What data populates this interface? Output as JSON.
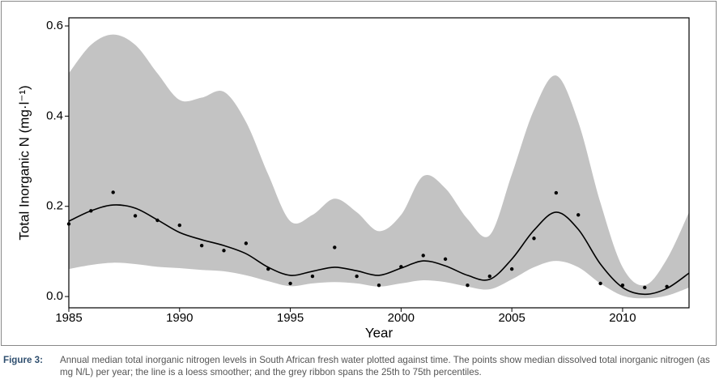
{
  "chart_data": {
    "type": "ribbon-scatter",
    "x_label": "Year",
    "y_label": "Total Inorganic N (mg·l⁻¹)",
    "xlim": [
      1985,
      2013
    ],
    "ylim": [
      -0.025,
      0.618
    ],
    "xticks": [
      1985,
      1990,
      1995,
      2000,
      2005,
      2010
    ],
    "yticks": [
      {
        "value": 0,
        "label": "0.0"
      },
      0.2,
      0.4,
      0.6
    ],
    "x": [
      1985,
      1986,
      1987,
      1988,
      1989,
      1990,
      1991,
      1992,
      1993,
      1994,
      1995,
      1996,
      1997,
      1998,
      1999,
      2000,
      2001,
      2002,
      2003,
      2004,
      2005,
      2006,
      2007,
      2008,
      2009,
      2010,
      2011,
      2012,
      2013
    ],
    "ribbon": {
      "color": "#c3c3c3",
      "upper": [
        0.495,
        0.558,
        0.581,
        0.558,
        0.495,
        0.436,
        0.441,
        0.454,
        0.387,
        0.271,
        0.167,
        0.181,
        0.217,
        0.187,
        0.145,
        0.181,
        0.267,
        0.24,
        0.172,
        0.136,
        0.271,
        0.414,
        0.49,
        0.387,
        0.208,
        0.065,
        0.025,
        0.083,
        0.187
      ],
      "lower": [
        0.061,
        0.07,
        0.075,
        0.072,
        0.066,
        0.063,
        0.059,
        0.056,
        0.047,
        0.034,
        0.023,
        0.029,
        0.032,
        0.029,
        0.022,
        0.029,
        0.036,
        0.032,
        0.022,
        0.016,
        0.038,
        0.065,
        0.079,
        0.065,
        0.029,
        0.002,
        -0.004,
        0.002,
        0.02
      ]
    },
    "smoother": {
      "color": "#000000",
      "values": [
        0.167,
        0.19,
        0.203,
        0.196,
        0.17,
        0.142,
        0.126,
        0.113,
        0.095,
        0.065,
        0.047,
        0.056,
        0.065,
        0.057,
        0.047,
        0.063,
        0.079,
        0.068,
        0.047,
        0.038,
        0.083,
        0.147,
        0.187,
        0.149,
        0.072,
        0.02,
        0.005,
        0.018,
        0.052
      ]
    },
    "points": {
      "color": "#000000",
      "x": [
        1985,
        1986,
        1987,
        1988,
        1989,
        1990,
        1991,
        1992,
        1993,
        1994,
        1995,
        1996,
        1997,
        1998,
        1999,
        2000,
        2001,
        2002,
        2003,
        2004,
        2005,
        2006,
        2007,
        2008,
        2009,
        2010,
        2011,
        2012
      ],
      "values": [
        0.161,
        0.19,
        0.231,
        0.179,
        0.169,
        0.158,
        0.113,
        0.102,
        0.118,
        0.061,
        0.029,
        0.045,
        0.109,
        0.045,
        0.025,
        0.066,
        0.091,
        0.083,
        0.025,
        0.045,
        0.061,
        0.129,
        0.23,
        0.181,
        0.029,
        0.025,
        0.02,
        0.022
      ]
    }
  },
  "caption": {
    "label": "Figure 3:",
    "text": "Annual median total inorganic nitrogen levels in South African fresh water plotted against time. The points show median dissolved total inorganic nitrogen (as mg N/L) per year; the line is a loess smoother; and the grey ribbon spans the 25th to 75th percentiles."
  }
}
